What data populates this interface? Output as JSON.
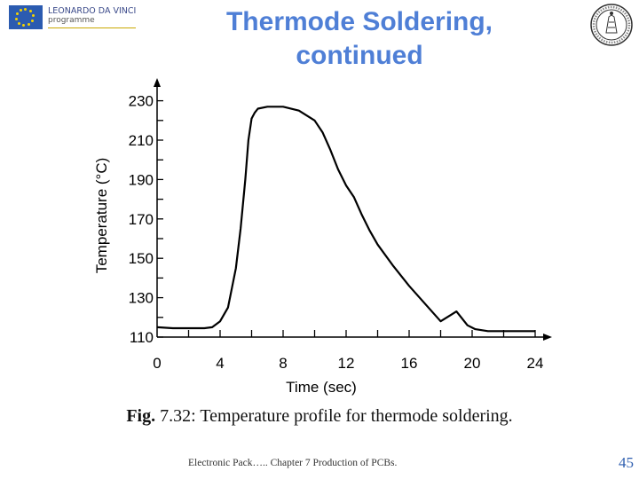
{
  "header": {
    "logo_line1": "LEONARDO DA VINCI",
    "logo_line2": "programme",
    "title_line1": "Thermode Soldering,",
    "title_line2": "continued"
  },
  "caption": {
    "prefix": "Fig.",
    "number": " 7.32: ",
    "text": "Temperature profile for thermode soldering."
  },
  "footer": {
    "text": "Electronic Pack….. Chapter 7 Production of PCBs.",
    "page_number": "45"
  },
  "colors": {
    "title": "#4f7fd6",
    "eu_blue": "#2b5bb0",
    "eu_star": "#f5d300",
    "line": "#000000"
  },
  "chart_data": {
    "type": "line",
    "xlabel": "Time (sec)",
    "ylabel": "Temperature (°C)",
    "xlim": [
      0,
      25
    ],
    "ylim": [
      110,
      232
    ],
    "xticks": [
      0,
      4,
      8,
      12,
      16,
      20,
      24
    ],
    "yticks": [
      110,
      130,
      150,
      170,
      190,
      210,
      230
    ],
    "x": [
      0,
      1,
      2,
      3,
      3.5,
      4,
      4.5,
      5,
      5.3,
      5.6,
      5.8,
      6,
      6.2,
      6.4,
      7,
      8,
      9,
      10,
      10.5,
      11,
      11.5,
      12,
      12.5,
      13,
      13.5,
      14,
      15,
      16,
      17,
      18,
      19,
      19.7,
      20.2,
      21,
      22,
      23,
      24
    ],
    "y": [
      115,
      114.5,
      114.5,
      114.5,
      115,
      118,
      125,
      145,
      165,
      190,
      210,
      221,
      224,
      226,
      227,
      227,
      225,
      220,
      214,
      205,
      195,
      187,
      181,
      172,
      164,
      157,
      146,
      136,
      127,
      118,
      123,
      116,
      114,
      113,
      113,
      113,
      113
    ],
    "grid": false
  }
}
